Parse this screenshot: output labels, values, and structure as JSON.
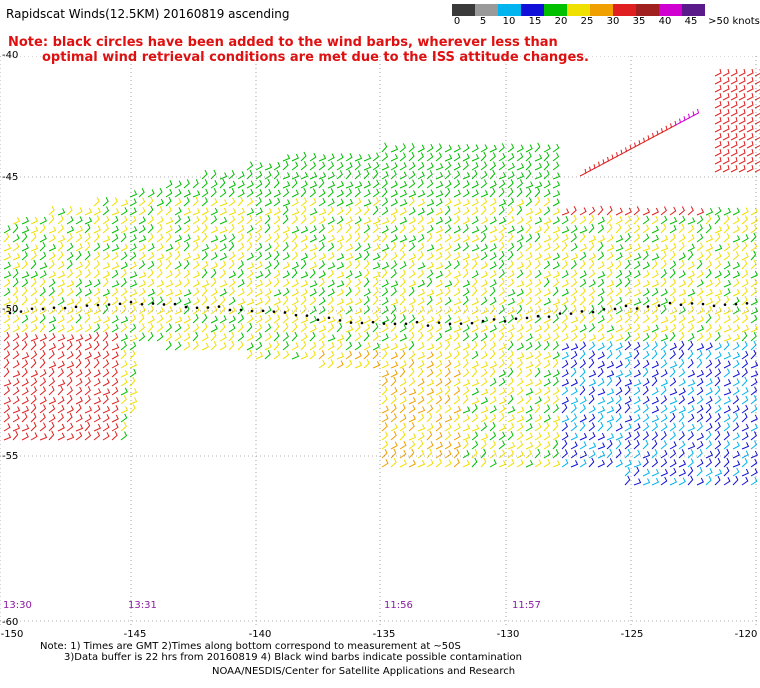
{
  "title": "Rapidscat Winds(12.5KM) 20160819 ascending",
  "note": {
    "line1": "Note: black circles have been added to the wind barbs, wherever less than",
    "line2": "optimal wind retrieval conditions are met due to the ISS attitude changes."
  },
  "legend": {
    "labels": [
      "0",
      "5",
      "10",
      "15",
      "20",
      "25",
      "30",
      "35",
      "40",
      "45",
      ">50 knots"
    ],
    "colors": [
      "#3a3a3a",
      "#9a9a9a",
      "#00b4f0",
      "#1010d8",
      "#00c000",
      "#f0e000",
      "#f0a000",
      "#e02020",
      "#a02020",
      "#d000d0",
      "#5a1a8a"
    ]
  },
  "map": {
    "latitude_labels": [
      "-40",
      "-45",
      "-50",
      "-55",
      "-60"
    ],
    "longitude_labels": [
      "-150",
      "-145",
      "-140",
      "-135",
      "-130",
      "-125",
      "-120"
    ],
    "time_labels": [
      "13:30",
      "13:31",
      "11:56",
      "11:57"
    ]
  },
  "footer": {
    "line1": "Note: 1) Times are GMT 2)Times along bottom correspond to measurement at ~50S",
    "line2": "3)Data buffer is 22 hrs from 20160819 4) Black wind barbs indicate possible contamination",
    "line3": "NOAA/NESDIS/Center for Satellite Applications and Research"
  }
}
